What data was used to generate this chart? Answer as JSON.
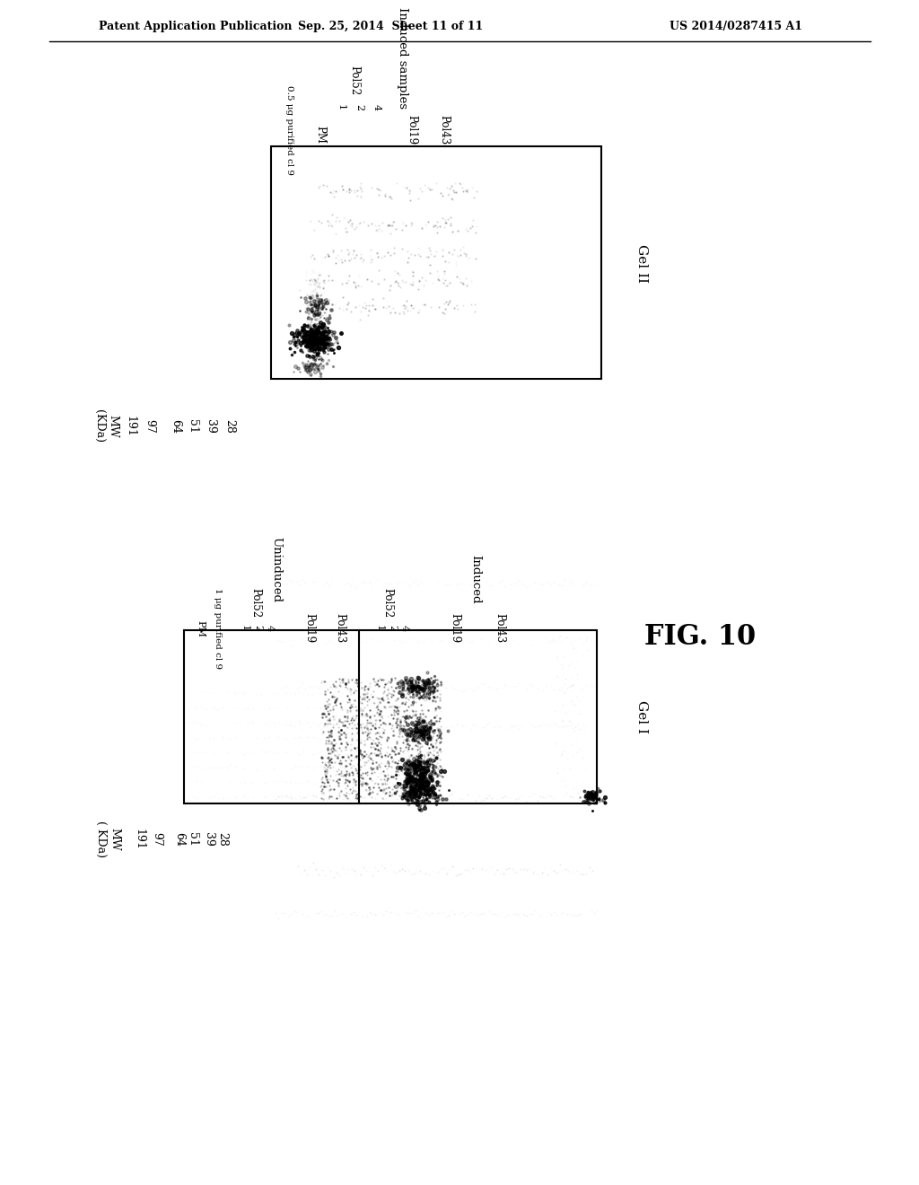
{
  "header_left": "Patent Application Publication",
  "header_center": "Sep. 25, 2014  Sheet 11 of 11",
  "header_right": "US 2014/0287415 A1",
  "fig_label": "FIG. 10",
  "gel1_label": "Gel I",
  "gel2_label": "Gel II",
  "mw_label_gel2": "MW\n(KDa)",
  "mw_label_gel1": "MW\n( KDa)",
  "mw_values": [
    "191",
    "97",
    "64",
    "51",
    "39",
    "28"
  ],
  "bg_color": "#ffffff",
  "gel_border_color": "#000000",
  "text_color": "#000000",
  "gel2_induced_label": "Induced samples",
  "gel2_purified_label": "0.5 μg purified cl 9",
  "gel2_pm_label": "PM",
  "gel2_pol52_label": "Pol52",
  "gel2_pol19_label": "Pol19",
  "gel2_pol43_label": "Pol43",
  "gel2_pol52_nums": [
    "1",
    "2",
    "4"
  ],
  "gel1_induced_label": "Induced",
  "gel1_uninduced_label": "Uninduced",
  "gel1_pm_label": "PM",
  "gel1_purified_label": "1 μg purified cl 9",
  "gel1_pol52_label": "Pol52",
  "gel1_pol19_label": "Pol19",
  "gel1_pol43_label": "Pol43",
  "gel1_nums": [
    "1",
    "2",
    "4"
  ]
}
